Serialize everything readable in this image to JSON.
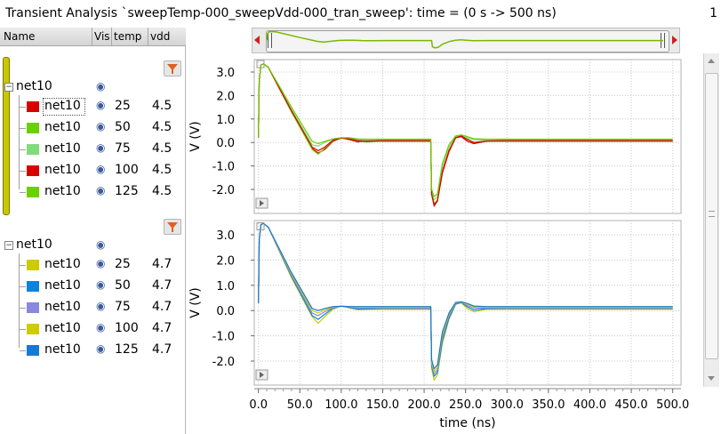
{
  "window": {
    "title": "Transient Analysis `sweepTemp-000_sweepVdd-000_tran_sweep': time = (0 s -> 500 ns)",
    "title_right": "1"
  },
  "panel": {
    "columns": [
      "Name",
      "Vis",
      "temp",
      "vdd"
    ],
    "groups": [
      {
        "label": "net10",
        "expander": "minus",
        "rows": [
          {
            "label": "net10",
            "temp": "25",
            "vdd": "4.5",
            "color": "#d80000"
          },
          {
            "label": "net10",
            "temp": "50",
            "vdd": "4.5",
            "color": "#6ad000"
          },
          {
            "label": "net10",
            "temp": "75",
            "vdd": "4.5",
            "color": "#80dc7a"
          },
          {
            "label": "net10",
            "temp": "100",
            "vdd": "4.5",
            "color": "#d80000"
          },
          {
            "label": "net10",
            "temp": "125",
            "vdd": "4.5",
            "color": "#6ad000"
          }
        ]
      },
      {
        "label": "net10",
        "expander": "minus",
        "rows": [
          {
            "label": "net10",
            "temp": "25",
            "vdd": "4.7",
            "color": "#cccc00"
          },
          {
            "label": "net10",
            "temp": "50",
            "vdd": "4.7",
            "color": "#0a84e0"
          },
          {
            "label": "net10",
            "temp": "75",
            "vdd": "4.7",
            "color": "#8888dd"
          },
          {
            "label": "net10",
            "temp": "100",
            "vdd": "4.7",
            "color": "#cccc00"
          },
          {
            "label": "net10",
            "temp": "125",
            "vdd": "4.7",
            "color": "#1878d8"
          }
        ]
      }
    ],
    "icons": {
      "visibility": "eye-icon",
      "filter": "filter-icon"
    }
  },
  "chart_data": [
    {
      "type": "line",
      "xlabel": "time (ns)",
      "ylabel": "V (V)",
      "xlim": [
        -5,
        510
      ],
      "ylim": [
        -2.85,
        3.55
      ],
      "yticks": [
        3.0,
        2.0,
        1.0,
        0.0,
        -1.0,
        -2.0
      ],
      "ytick_labels": [
        "3.0",
        "2.0",
        "1.0",
        "0.0",
        "-1.0",
        "-2.0"
      ],
      "xticks": [
        0,
        50,
        100,
        150,
        200,
        250,
        300,
        350,
        400,
        450,
        500
      ],
      "xtick_labels": [
        "0.0",
        "50.0",
        "100.0",
        "150.0",
        "200.0",
        "250.0",
        "300.0",
        "350.0",
        "400.0",
        "450.0",
        "500.0"
      ],
      "grid": true,
      "series": [
        {
          "temp": 25,
          "color": "#d80000",
          "x": [
            0,
            1,
            3,
            6,
            12,
            40,
            65,
            72,
            80,
            90,
            100,
            110,
            120,
            130,
            150,
            208,
            209,
            212,
            216,
            222,
            230,
            238,
            245,
            252,
            260,
            275,
            300,
            500
          ],
          "y": [
            0.2,
            2.6,
            3.3,
            3.35,
            3.2,
            1.3,
            -0.25,
            -0.45,
            -0.3,
            0.05,
            0.2,
            0.12,
            0.02,
            0.06,
            0.05,
            0.05,
            -2.2,
            -2.7,
            -2.5,
            -1.3,
            -0.4,
            0.2,
            0.25,
            0.05,
            -0.05,
            0.05,
            0.05,
            0.05
          ]
        },
        {
          "temp": 50,
          "color": "#6ad000",
          "x": [
            0,
            1,
            3,
            6,
            12,
            40,
            65,
            72,
            80,
            90,
            100,
            110,
            120,
            130,
            150,
            208,
            209,
            212,
            216,
            222,
            230,
            238,
            245,
            252,
            260,
            275,
            300,
            500
          ],
          "y": [
            0.2,
            2.6,
            3.3,
            3.35,
            3.2,
            1.3,
            -0.3,
            -0.5,
            -0.25,
            0.08,
            0.2,
            0.15,
            0.06,
            0.02,
            0.06,
            0.06,
            -2.2,
            -2.6,
            -2.45,
            -1.2,
            -0.35,
            0.2,
            0.3,
            0.15,
            0.0,
            0.05,
            0.06,
            0.06
          ]
        },
        {
          "temp": 75,
          "color": "#80dc7a",
          "x": [
            0,
            1,
            3,
            6,
            12,
            40,
            65,
            72,
            80,
            90,
            100,
            110,
            120,
            130,
            150,
            208,
            209,
            212,
            216,
            222,
            230,
            238,
            245,
            252,
            260,
            275,
            300,
            500
          ],
          "y": [
            0.2,
            2.6,
            3.3,
            3.35,
            3.2,
            1.4,
            -0.1,
            -0.15,
            0.0,
            0.15,
            0.2,
            0.18,
            0.12,
            0.1,
            0.1,
            0.1,
            -2.1,
            -2.45,
            -2.3,
            -1.0,
            -0.2,
            0.25,
            0.3,
            0.2,
            0.12,
            0.1,
            0.1,
            0.1
          ]
        },
        {
          "temp": 100,
          "color": "#d80000",
          "x": [
            0,
            1,
            3,
            6,
            12,
            40,
            65,
            72,
            80,
            90,
            100,
            110,
            120,
            130,
            150,
            208,
            209,
            212,
            216,
            222,
            230,
            238,
            245,
            252,
            260,
            275,
            300,
            500
          ],
          "y": [
            0.2,
            2.6,
            3.3,
            3.35,
            3.2,
            1.35,
            -0.2,
            -0.35,
            -0.2,
            0.1,
            0.18,
            0.15,
            0.08,
            0.05,
            0.08,
            0.08,
            -2.2,
            -2.65,
            -2.5,
            -1.25,
            -0.35,
            0.2,
            0.28,
            0.12,
            0.0,
            0.06,
            0.08,
            0.08
          ]
        },
        {
          "temp": 125,
          "color": "#6ad000",
          "x": [
            0,
            1,
            3,
            6,
            12,
            40,
            65,
            72,
            80,
            90,
            100,
            110,
            120,
            130,
            150,
            208,
            209,
            212,
            216,
            222,
            230,
            238,
            245,
            252,
            260,
            275,
            300,
            500
          ],
          "y": [
            0.2,
            2.6,
            3.3,
            3.35,
            3.2,
            1.5,
            0.05,
            -0.05,
            0.05,
            0.15,
            0.2,
            0.2,
            0.15,
            0.14,
            0.14,
            0.14,
            -2.0,
            -2.3,
            -2.2,
            -0.9,
            -0.1,
            0.28,
            0.32,
            0.25,
            0.16,
            0.14,
            0.14,
            0.14
          ]
        }
      ]
    },
    {
      "type": "line",
      "xlabel": "time (ns)",
      "ylabel": "V (V)",
      "xlim": [
        -5,
        510
      ],
      "ylim": [
        -2.85,
        3.55
      ],
      "yticks": [
        3.0,
        2.0,
        1.0,
        0.0,
        -1.0,
        -2.0
      ],
      "ytick_labels": [
        "3.0",
        "2.0",
        "1.0",
        "0.0",
        "-1.0",
        "-2.0"
      ],
      "xticks": [
        0,
        50,
        100,
        150,
        200,
        250,
        300,
        350,
        400,
        450,
        500
      ],
      "xtick_labels": [
        "0.0",
        "50.0",
        "100.0",
        "150.0",
        "200.0",
        "250.0",
        "300.0",
        "350.0",
        "400.0",
        "450.0",
        "500.0"
      ],
      "grid": true,
      "series": [
        {
          "temp": 25,
          "color": "#cccc00",
          "x": [
            0,
            1,
            3,
            6,
            12,
            40,
            65,
            72,
            80,
            90,
            100,
            110,
            120,
            130,
            150,
            208,
            209,
            212,
            216,
            222,
            230,
            238,
            245,
            252,
            260,
            275,
            300,
            500
          ],
          "y": [
            0.3,
            2.8,
            3.4,
            3.45,
            3.3,
            1.3,
            -0.25,
            -0.5,
            -0.25,
            0.05,
            0.18,
            0.1,
            0.03,
            0.05,
            0.05,
            0.05,
            -2.3,
            -2.75,
            -2.55,
            -1.3,
            -0.35,
            0.25,
            0.3,
            0.08,
            -0.05,
            0.05,
            0.05,
            0.05
          ]
        },
        {
          "temp": 50,
          "color": "#0a84e0",
          "x": [
            0,
            1,
            3,
            6,
            12,
            40,
            65,
            72,
            80,
            90,
            100,
            110,
            120,
            130,
            150,
            208,
            209,
            212,
            216,
            222,
            230,
            238,
            245,
            252,
            260,
            275,
            300,
            500
          ],
          "y": [
            0.3,
            2.8,
            3.4,
            3.45,
            3.3,
            1.35,
            -0.2,
            -0.35,
            -0.15,
            0.1,
            0.18,
            0.12,
            0.06,
            0.06,
            0.08,
            0.08,
            -2.2,
            -2.6,
            -2.45,
            -1.2,
            -0.3,
            0.25,
            0.32,
            0.15,
            0.02,
            0.07,
            0.08,
            0.08
          ]
        },
        {
          "temp": 75,
          "color": "#8888dd",
          "x": [
            0,
            1,
            3,
            6,
            12,
            40,
            65,
            72,
            80,
            90,
            100,
            110,
            120,
            130,
            150,
            208,
            209,
            212,
            216,
            222,
            230,
            238,
            245,
            252,
            260,
            275,
            300,
            500
          ],
          "y": [
            0.3,
            2.8,
            3.4,
            3.45,
            3.3,
            1.4,
            -0.1,
            -0.2,
            -0.05,
            0.12,
            0.18,
            0.14,
            0.1,
            0.1,
            0.1,
            0.1,
            -2.1,
            -2.5,
            -2.35,
            -1.05,
            -0.2,
            0.28,
            0.33,
            0.2,
            0.1,
            0.1,
            0.1,
            0.1
          ]
        },
        {
          "temp": 100,
          "color": "#cccc00",
          "x": [
            0,
            1,
            3,
            6,
            12,
            40,
            65,
            72,
            80,
            90,
            100,
            110,
            120,
            130,
            150,
            208,
            209,
            212,
            216,
            222,
            230,
            238,
            245,
            252,
            260,
            275,
            300,
            500
          ],
          "y": [
            0.3,
            2.8,
            3.4,
            3.45,
            3.3,
            1.45,
            0.0,
            -0.1,
            0.02,
            0.14,
            0.17,
            0.15,
            0.13,
            0.13,
            0.13,
            0.13,
            -2.05,
            -2.4,
            -2.25,
            -0.95,
            -0.15,
            0.3,
            0.34,
            0.25,
            0.15,
            0.13,
            0.13,
            0.13
          ]
        },
        {
          "temp": 125,
          "color": "#1878d8",
          "x": [
            0,
            1,
            3,
            6,
            12,
            40,
            65,
            72,
            80,
            90,
            100,
            110,
            120,
            130,
            150,
            208,
            209,
            212,
            216,
            222,
            230,
            238,
            245,
            252,
            260,
            275,
            300,
            500
          ],
          "y": [
            0.3,
            2.8,
            3.4,
            3.45,
            3.3,
            1.5,
            0.08,
            0.0,
            0.08,
            0.16,
            0.17,
            0.16,
            0.16,
            0.16,
            0.16,
            0.16,
            -1.95,
            -2.3,
            -2.15,
            -0.85,
            -0.1,
            0.32,
            0.35,
            0.28,
            0.18,
            0.16,
            0.16,
            0.16
          ]
        }
      ]
    }
  ]
}
